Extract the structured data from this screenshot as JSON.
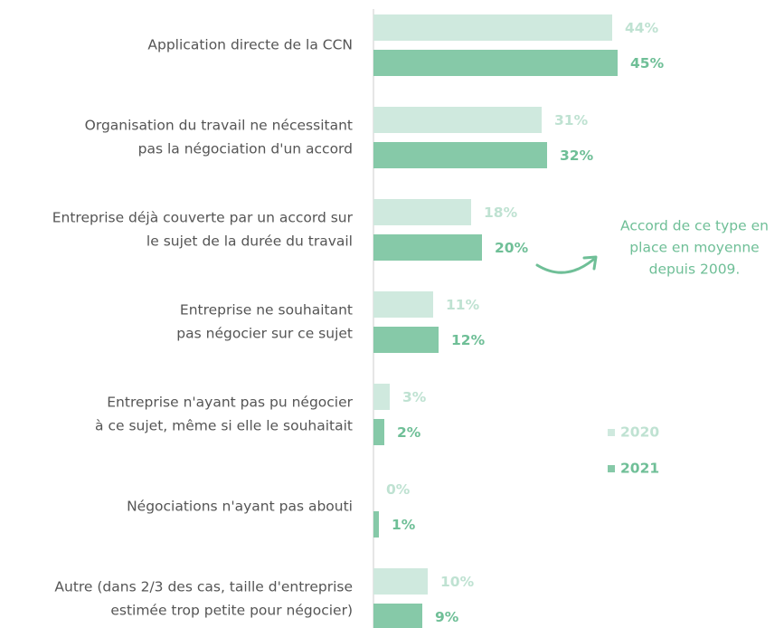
{
  "chart_data": {
    "type": "bar",
    "orientation": "horizontal",
    "categories": [
      [
        "Application directe de la CCN"
      ],
      [
        "Organisation du travail ne nécessitant",
        "pas la négociation d'un accord"
      ],
      [
        "Entreprise déjà couverte par un accord sur",
        "le sujet de la durée du travail"
      ],
      [
        "Entreprise ne souhaitant",
        "pas négocier sur ce sujet"
      ],
      [
        "Entreprise n'ayant pas pu négocier",
        "à ce sujet, même si elle le souhaitait"
      ],
      [
        "Négociations n'ayant pas abouti"
      ],
      [
        "Autre (dans 2/3 des cas, taille d'entreprise",
        "estimée trop petite pour négocier)"
      ]
    ],
    "series": [
      {
        "name": "2020",
        "color": "#cfe9de",
        "values": [
          44,
          31,
          18,
          11,
          3,
          0,
          10
        ],
        "value_labels": [
          "44%",
          "31%",
          "18%",
          "11%",
          "3%",
          "0%",
          "10%"
        ]
      },
      {
        "name": "2021",
        "color": "#86c9a8",
        "values": [
          45,
          32,
          20,
          12,
          2,
          1,
          9
        ],
        "value_labels": [
          "45%",
          "32%",
          "20%",
          "12%",
          "2%",
          "1%",
          "9%"
        ]
      }
    ],
    "annotation": [
      "Accord de ce type en",
      "place en moyenne",
      "depuis 2009."
    ]
  }
}
